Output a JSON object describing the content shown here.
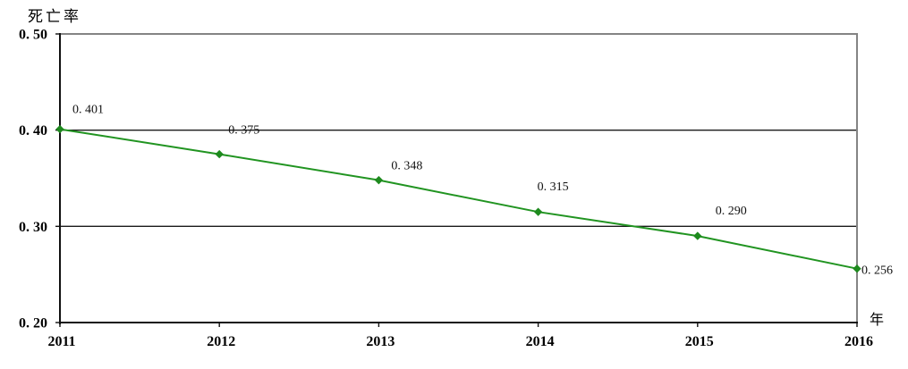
{
  "chart": {
    "y_axis_title": "死亡率",
    "x_axis_title": "年",
    "colors": {
      "line": "#219421",
      "marker": "#1e8a1e",
      "axis": "#111111",
      "border": "#848484",
      "grid": "#1a1a1a",
      "text": "#000000",
      "background": "#ffffff"
    }
  },
  "chart_data": {
    "type": "line",
    "title": "",
    "ylabel": "死亡率",
    "xlabel": "年",
    "categories": [
      "2011",
      "2012",
      "2013",
      "2014",
      "2015",
      "2016"
    ],
    "series": [
      {
        "name": "死亡率",
        "values": [
          0.401,
          0.375,
          0.348,
          0.315,
          0.29,
          0.256
        ],
        "point_labels": [
          "0. 401",
          "0. 375",
          "0. 348",
          "0. 315",
          "0. 290",
          "0. 256"
        ],
        "label_offsets": [
          [
            14,
            -18
          ],
          [
            10,
            -23
          ],
          [
            14,
            -12
          ],
          [
            -1,
            -24
          ],
          [
            20,
            -24
          ],
          [
            5,
            6
          ]
        ]
      }
    ],
    "ylim": [
      0.2,
      0.5
    ],
    "y_ticks": [
      0.2,
      0.3,
      0.4,
      0.5
    ],
    "y_tick_labels": [
      "0. 20",
      "0. 30",
      "0. 40",
      "0. 50"
    ],
    "grid": "horizontal-inner",
    "legend": "none",
    "marker": "diamond",
    "line_color": "#219421"
  }
}
